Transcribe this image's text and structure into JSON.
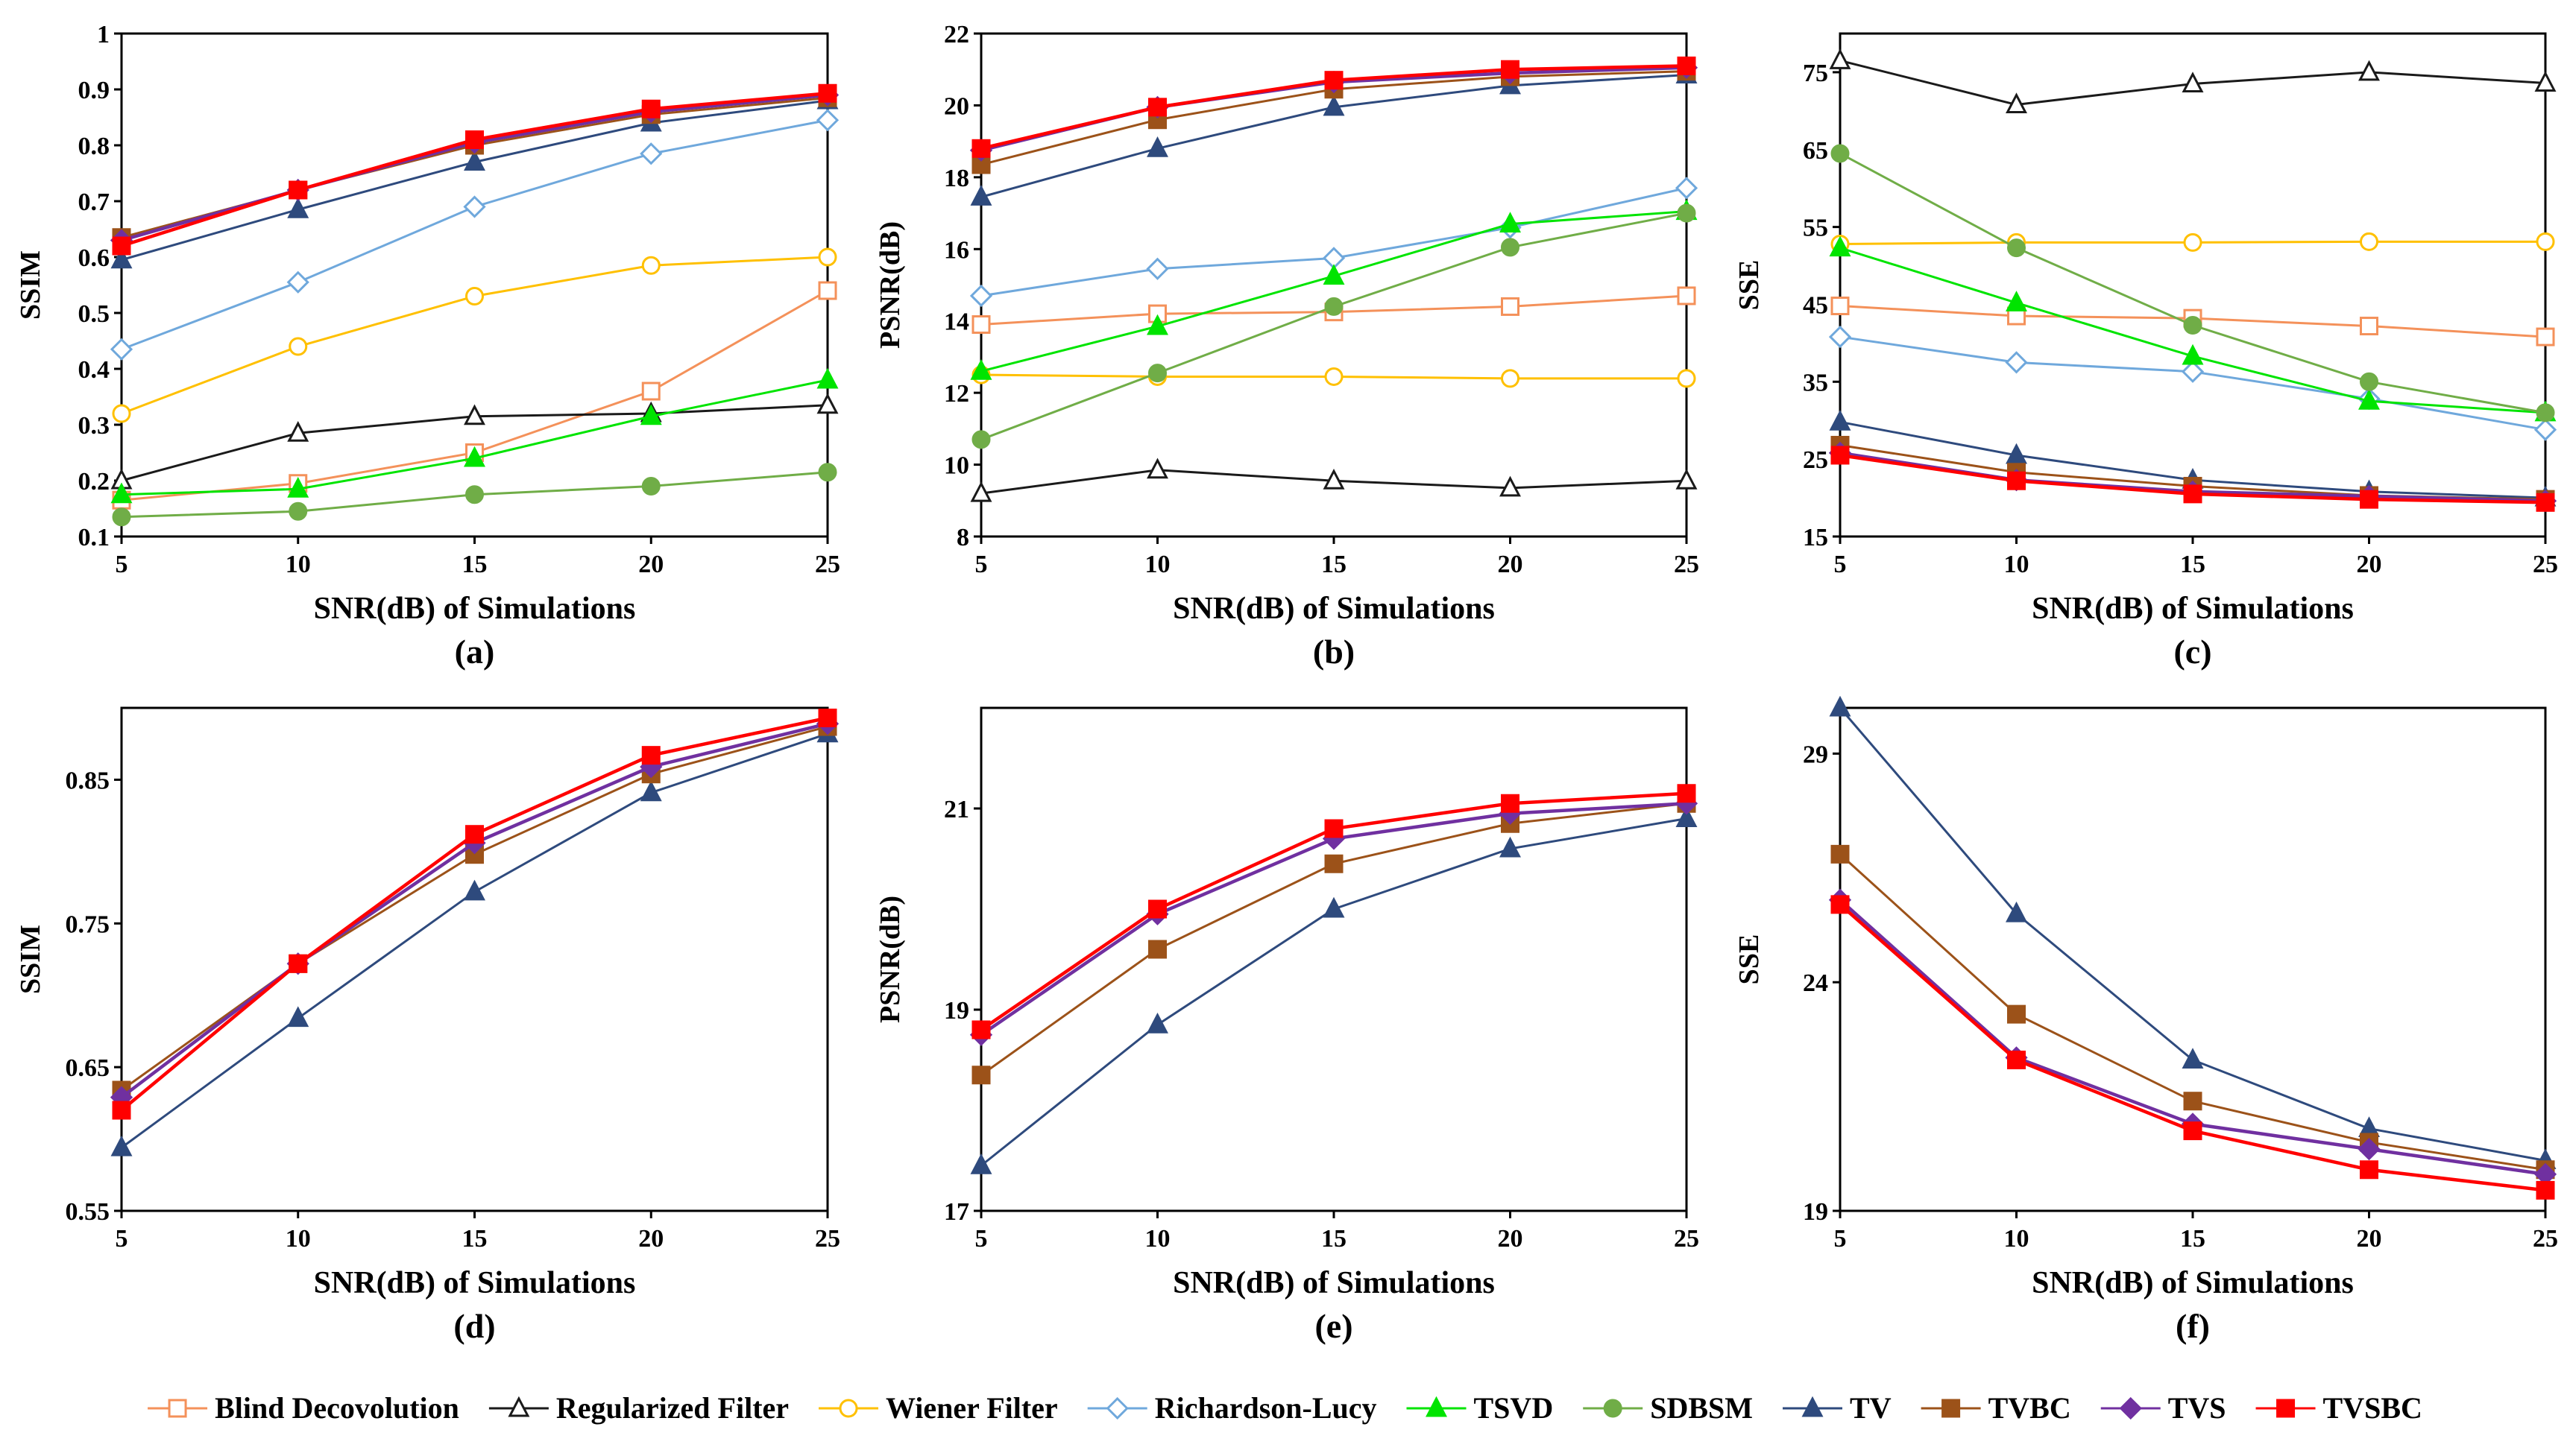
{
  "series_styles": {
    "Blind Decovolution": {
      "color": "#f4915a",
      "marker": "square-open"
    },
    "Regularized Filter": {
      "color": "#1a1a1a",
      "marker": "triangle-open"
    },
    "Wiener  Filter": {
      "color": "#ffc000",
      "marker": "circle-open"
    },
    "Richardson-Lucy": {
      "color": "#6fa8dc",
      "marker": "diamond-open"
    },
    "TSVD": {
      "color": "#00e400",
      "marker": "triangle"
    },
    "SDBSM": {
      "color": "#70ad47",
      "marker": "circle"
    },
    "TV": {
      "color": "#2e4a7d",
      "marker": "triangle"
    },
    "TVBC": {
      "color": "#9c5219",
      "marker": "square"
    },
    "TVS": {
      "color": "#7030a0",
      "marker": "diamond"
    },
    "TVSBC": {
      "color": "#ff0000",
      "marker": "square"
    }
  },
  "legend": [
    "Blind Decovolution",
    "Regularized Filter",
    "Wiener  Filter",
    "Richardson-Lucy",
    "TSVD",
    "SDBSM",
    "TV",
    "TVBC",
    "TVS",
    "TVSBC"
  ],
  "chart_data": [
    {
      "type": "line",
      "panel": "(a)",
      "xlabel": "SNR(dB) of Simulations",
      "ylabel": "SSIM",
      "x": [
        5,
        10,
        15,
        20,
        25
      ],
      "xlim": [
        5,
        25
      ],
      "ylim": [
        0.1,
        1
      ],
      "yticks": [
        0.1,
        0.2,
        0.3,
        0.4,
        0.5,
        0.6,
        0.7,
        0.8,
        0.9,
        1
      ],
      "ytick_labels": [
        "0.1",
        "0.2",
        "0.3",
        "0.4",
        "0.5",
        "0.6",
        "0.7",
        "0.8",
        "0.9",
        "1"
      ],
      "series": [
        {
          "name": "Blind Decovolution",
          "values": [
            0.165,
            0.195,
            0.25,
            0.36,
            0.54
          ]
        },
        {
          "name": "Regularized Filter",
          "values": [
            0.2,
            0.285,
            0.315,
            0.32,
            0.335
          ]
        },
        {
          "name": "Wiener  Filter",
          "values": [
            0.32,
            0.44,
            0.53,
            0.585,
            0.6
          ]
        },
        {
          "name": "Richardson-Lucy",
          "values": [
            0.435,
            0.555,
            0.69,
            0.785,
            0.845
          ]
        },
        {
          "name": "TSVD",
          "values": [
            0.175,
            0.185,
            0.24,
            0.315,
            0.38
          ]
        },
        {
          "name": "SDBSM",
          "values": [
            0.135,
            0.145,
            0.175,
            0.19,
            0.215
          ]
        },
        {
          "name": "TV",
          "values": [
            0.595,
            0.685,
            0.77,
            0.84,
            0.88
          ]
        },
        {
          "name": "TVBC",
          "values": [
            0.635,
            0.72,
            0.8,
            0.855,
            0.885
          ]
        },
        {
          "name": "TVS",
          "values": [
            0.63,
            0.72,
            0.805,
            0.86,
            0.89
          ]
        },
        {
          "name": "TVSBC",
          "values": [
            0.62,
            0.72,
            0.81,
            0.865,
            0.893
          ]
        }
      ]
    },
    {
      "type": "line",
      "panel": "(b)",
      "xlabel": "SNR(dB) of Simulations",
      "ylabel": "PSNR(dB)",
      "x": [
        5,
        10,
        15,
        20,
        25
      ],
      "xlim": [
        5,
        25
      ],
      "ylim": [
        8,
        22
      ],
      "yticks": [
        8,
        10,
        12,
        14,
        16,
        18,
        20,
        22
      ],
      "ytick_labels": [
        "8",
        "10",
        "12",
        "14",
        "16",
        "18",
        "20",
        "22"
      ],
      "series": [
        {
          "name": "Blind Decovolution",
          "values": [
            13.9,
            14.2,
            14.25,
            14.4,
            14.7
          ]
        },
        {
          "name": "Regularized Filter",
          "values": [
            9.2,
            9.85,
            9.55,
            9.35,
            9.55
          ]
        },
        {
          "name": "Wiener  Filter",
          "values": [
            12.5,
            12.45,
            12.45,
            12.4,
            12.4
          ]
        },
        {
          "name": "Richardson-Lucy",
          "values": [
            14.7,
            15.45,
            15.75,
            16.6,
            17.7
          ]
        },
        {
          "name": "TSVD",
          "values": [
            12.6,
            13.85,
            15.25,
            16.7,
            17.05
          ]
        },
        {
          "name": "SDBSM",
          "values": [
            10.7,
            12.55,
            14.4,
            16.05,
            17.0
          ]
        },
        {
          "name": "TV",
          "values": [
            17.45,
            18.8,
            19.95,
            20.55,
            20.85
          ]
        },
        {
          "name": "TVBC",
          "values": [
            18.35,
            19.6,
            20.45,
            20.8,
            20.95
          ]
        },
        {
          "name": "TVS",
          "values": [
            18.75,
            19.95,
            20.65,
            20.9,
            21.05
          ]
        },
        {
          "name": "TVSBC",
          "values": [
            18.8,
            19.95,
            20.7,
            21.0,
            21.1
          ]
        }
      ]
    },
    {
      "type": "line",
      "panel": "(c)",
      "xlabel": "SNR(dB) of Simulations",
      "ylabel": "SSE",
      "x": [
        5,
        10,
        15,
        20,
        25
      ],
      "xlim": [
        5,
        25
      ],
      "ylim": [
        15,
        80
      ],
      "yticks": [
        15,
        25,
        35,
        45,
        55,
        65,
        75
      ],
      "ytick_labels": [
        "15",
        "25",
        "35",
        "45",
        "55",
        "65",
        "75"
      ],
      "series": [
        {
          "name": "Blind Decovolution",
          "values": [
            44.8,
            43.5,
            43.2,
            42.2,
            40.8
          ]
        },
        {
          "name": "Regularized Filter",
          "values": [
            76.5,
            70.8,
            73.5,
            75.0,
            73.6
          ]
        },
        {
          "name": "Wiener  Filter",
          "values": [
            52.8,
            53.0,
            53.0,
            53.1,
            53.1
          ]
        },
        {
          "name": "Richardson-Lucy",
          "values": [
            40.8,
            37.5,
            36.3,
            32.8,
            28.8
          ]
        },
        {
          "name": "TSVD",
          "values": [
            52.3,
            45.2,
            38.3,
            32.5,
            31.0
          ]
        },
        {
          "name": "SDBSM",
          "values": [
            64.5,
            52.3,
            42.3,
            35.0,
            31.0
          ]
        },
        {
          "name": "TV",
          "values": [
            29.8,
            25.5,
            22.3,
            20.8,
            20.0
          ]
        },
        {
          "name": "TVBC",
          "values": [
            26.8,
            23.3,
            21.5,
            20.3,
            19.8
          ]
        },
        {
          "name": "TVS",
          "values": [
            25.8,
            22.3,
            20.8,
            20.2,
            19.6
          ]
        },
        {
          "name": "TVSBC",
          "values": [
            25.5,
            22.2,
            20.5,
            19.8,
            19.4
          ]
        }
      ]
    },
    {
      "type": "line",
      "panel": "(d)",
      "xlabel": "SNR(dB) of Simulations",
      "ylabel": "SSIM",
      "x": [
        5,
        10,
        15,
        20,
        25
      ],
      "xlim": [
        5,
        25
      ],
      "ylim": [
        0.55,
        0.9
      ],
      "yticks": [
        0.55,
        0.65,
        0.75,
        0.85
      ],
      "ytick_labels": [
        "0.55",
        "0.65",
        "0.75",
        "0.85"
      ],
      "series": [
        {
          "name": "TV",
          "values": [
            0.594,
            0.684,
            0.772,
            0.841,
            0.882
          ]
        },
        {
          "name": "TVBC",
          "values": [
            0.634,
            0.722,
            0.798,
            0.854,
            0.887
          ]
        },
        {
          "name": "TVS",
          "values": [
            0.629,
            0.722,
            0.806,
            0.859,
            0.889
          ]
        },
        {
          "name": "TVSBC",
          "values": [
            0.62,
            0.722,
            0.812,
            0.867,
            0.893
          ]
        }
      ]
    },
    {
      "type": "line",
      "panel": "(e)",
      "xlabel": "SNR(dB) of Simulations",
      "ylabel": "PSNR(dB)",
      "x": [
        5,
        10,
        15,
        20,
        25
      ],
      "xlim": [
        5,
        25
      ],
      "ylim": [
        17,
        22
      ],
      "yticks": [
        17,
        19,
        21
      ],
      "ytick_labels": [
        "17",
        "19",
        "21"
      ],
      "series": [
        {
          "name": "TV",
          "values": [
            17.45,
            18.85,
            20.0,
            20.6,
            20.9
          ]
        },
        {
          "name": "TVBC",
          "values": [
            18.35,
            19.6,
            20.45,
            20.85,
            21.05
          ]
        },
        {
          "name": "TVS",
          "values": [
            18.75,
            19.95,
            20.7,
            20.95,
            21.05
          ]
        },
        {
          "name": "TVSBC",
          "values": [
            18.8,
            20.0,
            20.8,
            21.05,
            21.15
          ]
        }
      ]
    },
    {
      "type": "line",
      "panel": "(f)",
      "xlabel": "SNR(dB) of Simulations",
      "ylabel": "SSE",
      "x": [
        5,
        10,
        15,
        20,
        25
      ],
      "xlim": [
        5,
        25
      ],
      "ylim": [
        19,
        30
      ],
      "yticks": [
        19,
        24,
        29
      ],
      "ytick_labels": [
        "19",
        "24",
        "29"
      ],
      "series": [
        {
          "name": "TV",
          "values": [
            30.0,
            25.5,
            22.3,
            20.8,
            20.1
          ]
        },
        {
          "name": "TVBC",
          "values": [
            26.8,
            23.3,
            21.4,
            20.5,
            19.9
          ]
        },
        {
          "name": "TVS",
          "values": [
            25.8,
            22.35,
            20.9,
            20.35,
            19.8
          ]
        },
        {
          "name": "TVSBC",
          "values": [
            25.7,
            22.3,
            20.75,
            19.9,
            19.45
          ]
        }
      ]
    }
  ]
}
